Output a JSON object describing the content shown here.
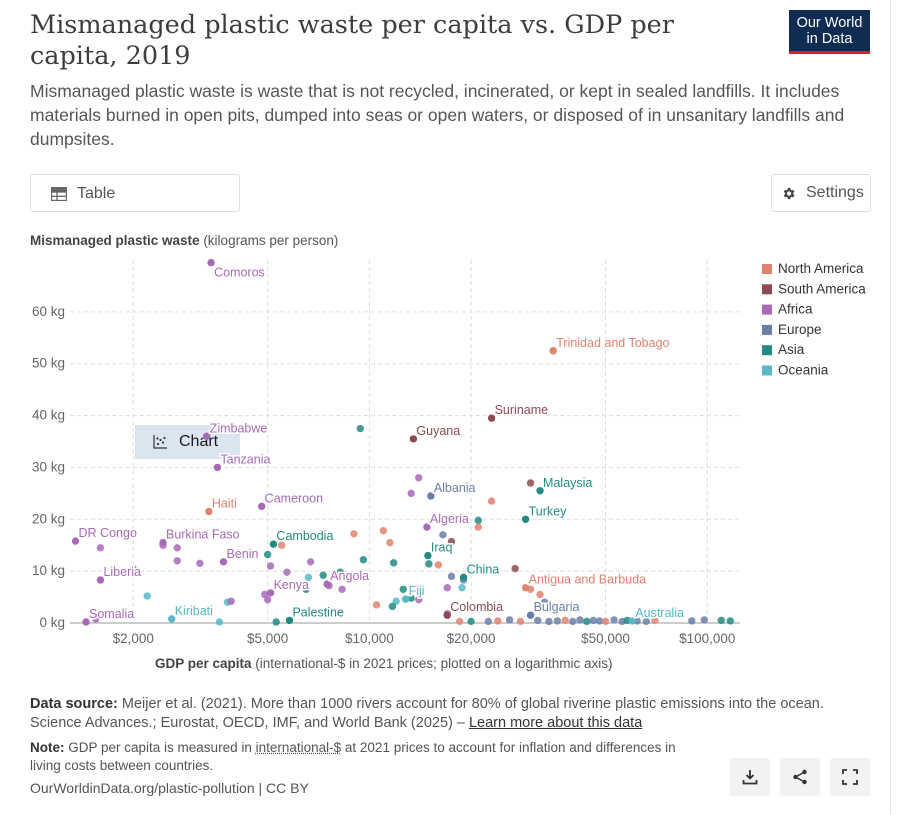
{
  "header": {
    "title": "Mismanaged plastic waste per capita vs. GDP per capita, 2019",
    "subtitle": "Mismanaged plastic waste is waste that is not recycled, incinerated, or kept in sealed landfills. It includes materials burned in open pits, dumped into seas or open waters, or disposed of in unsanitary landfills and dumpsites.",
    "logo_line1": "Our World",
    "logo_line2": "in Data"
  },
  "controls": {
    "table_label": "Table",
    "chart_label": "Chart",
    "settings_label": "Settings"
  },
  "axes": {
    "y_title_bold": "Mismanaged plastic waste",
    "y_title_rest": " (kilograms per person)",
    "x_title_bold": "GDP per capita",
    "x_title_rest": " (international-$ in 2021 prices; plotted on a logarithmic axis)"
  },
  "footer": {
    "source_label": "Data source:",
    "source_text": " Meijer et al. (2021). More than 1000 rivers account for 80% of global riverine plastic emissions into the ocean. Science Advances.; Eurostat, OECD, IMF, and World Bank (2025) – ",
    "source_link": "Learn more about this data",
    "note_label": "Note:",
    "note_text1": " GDP per capita is measured in ",
    "note_link": "international-$",
    "note_text2": " at 2021 prices to account for inflation and differences in living costs between countries.",
    "site": "OurWorldinData.org/plastic-pollution | CC BY"
  },
  "colors": {
    "North America": "#e0826e",
    "South America": "#8c4a52",
    "Africa": "#a86ab8",
    "Europe": "#6a7fa8",
    "Asia": "#218b82",
    "Oceania": "#58b8c8"
  },
  "chart_data": {
    "type": "scatter",
    "title": "Mismanaged plastic waste per capita vs. GDP per capita, 2019",
    "xlabel": "GDP per capita (international-$ in 2021 prices; plotted on a logarithmic axis)",
    "ylabel": "Mismanaged plastic waste (kilograms per person)",
    "xscale": "log",
    "xlim": [
      1300,
      125000
    ],
    "ylim": [
      0,
      70
    ],
    "xticks": [
      2000,
      5000,
      10000,
      20000,
      50000,
      100000
    ],
    "xtick_labels": [
      "$2,000",
      "$5,000",
      "$10,000",
      "$20,000",
      "$50,000",
      "$100,000"
    ],
    "yticks": [
      0,
      10,
      20,
      30,
      40,
      50,
      60
    ],
    "ytick_labels": [
      "0 kg",
      "10 kg",
      "20 kg",
      "30 kg",
      "40 kg",
      "50 kg",
      "60 kg"
    ],
    "legend": [
      "North America",
      "South America",
      "Africa",
      "Europe",
      "Asia",
      "Oceania"
    ],
    "legend_position": "top-right",
    "labeled_points": [
      {
        "name": "Comoros",
        "region": "Africa",
        "x": 3400,
        "y": 69.5
      },
      {
        "name": "Trinidad and Tobago",
        "region": "North America",
        "x": 35000,
        "y": 52.5
      },
      {
        "name": "Suriname",
        "region": "South America",
        "x": 23000,
        "y": 39.5
      },
      {
        "name": "Zimbabwe",
        "region": "Africa",
        "x": 3300,
        "y": 36
      },
      {
        "name": "Guyana",
        "region": "South America",
        "x": 13500,
        "y": 35.5
      },
      {
        "name": "Tanzania",
        "region": "Africa",
        "x": 3550,
        "y": 30
      },
      {
        "name": "Malaysia",
        "region": "Asia",
        "x": 32000,
        "y": 25.5
      },
      {
        "name": "Albania",
        "region": "Europe",
        "x": 15200,
        "y": 24.5
      },
      {
        "name": "Cameroon",
        "region": "Africa",
        "x": 4800,
        "y": 22.5
      },
      {
        "name": "Haiti",
        "region": "North America",
        "x": 3350,
        "y": 21.5
      },
      {
        "name": "Turkey",
        "region": "Asia",
        "x": 29000,
        "y": 20
      },
      {
        "name": "Algeria",
        "region": "Africa",
        "x": 14800,
        "y": 18.5
      },
      {
        "name": "DR Congo",
        "region": "Africa",
        "x": 1350,
        "y": 15.8
      },
      {
        "name": "Burkina Faso",
        "region": "Africa",
        "x": 2450,
        "y": 15.5
      },
      {
        "name": "Cambodia",
        "region": "Asia",
        "x": 5200,
        "y": 15.2
      },
      {
        "name": "Iraq",
        "region": "Asia",
        "x": 14900,
        "y": 13
      },
      {
        "name": "Benin",
        "region": "Africa",
        "x": 3700,
        "y": 11.8
      },
      {
        "name": "China",
        "region": "Asia",
        "x": 19000,
        "y": 8.8
      },
      {
        "name": "Liberia",
        "region": "Africa",
        "x": 1600,
        "y": 8.3
      },
      {
        "name": "Angola",
        "region": "Africa",
        "x": 7500,
        "y": 7.5
      },
      {
        "name": "Antigua and Barbuda",
        "region": "North America",
        "x": 29000,
        "y": 6.8
      },
      {
        "name": "Kenya",
        "region": "Africa",
        "x": 5100,
        "y": 5.8
      },
      {
        "name": "Fiji",
        "region": "Oceania",
        "x": 12800,
        "y": 4.6
      },
      {
        "name": "Colombia",
        "region": "South America",
        "x": 17000,
        "y": 1.5
      },
      {
        "name": "Bulgaria",
        "region": "Europe",
        "x": 30000,
        "y": 1.5
      },
      {
        "name": "Palestine",
        "region": "Asia",
        "x": 5800,
        "y": 0.5
      },
      {
        "name": "Kiribati",
        "region": "Oceania",
        "x": 2600,
        "y": 0.8
      },
      {
        "name": "Somalia",
        "region": "Africa",
        "x": 1450,
        "y": 0.2
      },
      {
        "name": "Australia",
        "region": "Oceania",
        "x": 60000,
        "y": 0.4
      }
    ],
    "other_points": [
      {
        "region": "Asia",
        "x": 9400,
        "y": 37.5
      },
      {
        "region": "Africa",
        "x": 14000,
        "y": 28
      },
      {
        "region": "Africa",
        "x": 13300,
        "y": 25
      },
      {
        "region": "South America",
        "x": 30000,
        "y": 27
      },
      {
        "region": "North America",
        "x": 23000,
        "y": 23.5
      },
      {
        "region": "Asia",
        "x": 21000,
        "y": 19.8
      },
      {
        "region": "North America",
        "x": 21000,
        "y": 18.5
      },
      {
        "region": "Europe",
        "x": 16500,
        "y": 17
      },
      {
        "region": "South America",
        "x": 17500,
        "y": 15.7
      },
      {
        "region": "North America",
        "x": 11000,
        "y": 17.8
      },
      {
        "region": "North America",
        "x": 9000,
        "y": 17.2
      },
      {
        "region": "North America",
        "x": 11500,
        "y": 15.5
      },
      {
        "region": "North America",
        "x": 5500,
        "y": 15
      },
      {
        "region": "Africa",
        "x": 1600,
        "y": 14.5
      },
      {
        "region": "Africa",
        "x": 2450,
        "y": 15
      },
      {
        "region": "Africa",
        "x": 2700,
        "y": 14.5
      },
      {
        "region": "Africa",
        "x": 2700,
        "y": 12
      },
      {
        "region": "Africa",
        "x": 3150,
        "y": 11.5
      },
      {
        "region": "Oceania",
        "x": 4100,
        "y": 13.5
      },
      {
        "region": "Asia",
        "x": 5000,
        "y": 13.2
      },
      {
        "region": "Asia",
        "x": 9600,
        "y": 12.2
      },
      {
        "region": "Asia",
        "x": 11800,
        "y": 11.6
      },
      {
        "region": "Asia",
        "x": 15000,
        "y": 11.4
      },
      {
        "region": "North America",
        "x": 16000,
        "y": 11.2
      },
      {
        "region": "South America",
        "x": 27000,
        "y": 10.5
      },
      {
        "region": "Africa",
        "x": 5100,
        "y": 11
      },
      {
        "region": "Africa",
        "x": 6700,
        "y": 11.8
      },
      {
        "region": "Africa",
        "x": 5700,
        "y": 9.8
      },
      {
        "region": "Africa",
        "x": 2000,
        "y": 10.5
      },
      {
        "region": "Asia",
        "x": 7300,
        "y": 9.2
      },
      {
        "region": "Oceania",
        "x": 6600,
        "y": 8.8
      },
      {
        "region": "Asia",
        "x": 8200,
        "y": 9.8
      },
      {
        "region": "Africa",
        "x": 7600,
        "y": 7.2
      },
      {
        "region": "Africa",
        "x": 8300,
        "y": 6.5
      },
      {
        "region": "Asia",
        "x": 6500,
        "y": 6.5
      },
      {
        "region": "Africa",
        "x": 4900,
        "y": 5.5
      },
      {
        "region": "Africa",
        "x": 5000,
        "y": 4.5
      },
      {
        "region": "Asia",
        "x": 12600,
        "y": 6.5
      },
      {
        "region": "Asia",
        "x": 13300,
        "y": 4.8
      },
      {
        "region": "Oceania",
        "x": 12000,
        "y": 4.2
      },
      {
        "region": "Asia",
        "x": 11700,
        "y": 3.2
      },
      {
        "region": "North America",
        "x": 10500,
        "y": 3.5
      },
      {
        "region": "Africa",
        "x": 14000,
        "y": 4.5
      },
      {
        "region": "Europe",
        "x": 17500,
        "y": 9
      },
      {
        "region": "Europe",
        "x": 19000,
        "y": 8.3
      },
      {
        "region": "Oceania",
        "x": 18800,
        "y": 6.8
      },
      {
        "region": "Africa",
        "x": 17000,
        "y": 6.8
      },
      {
        "region": "North America",
        "x": 30000,
        "y": 6.5
      },
      {
        "region": "North America",
        "x": 32000,
        "y": 5.5
      },
      {
        "region": "Europe",
        "x": 33000,
        "y": 4
      },
      {
        "region": "Oceania",
        "x": 3800,
        "y": 4
      },
      {
        "region": "Africa",
        "x": 3900,
        "y": 4.2
      },
      {
        "region": "Oceania",
        "x": 2200,
        "y": 5.2
      },
      {
        "region": "Africa",
        "x": 1550,
        "y": 0.8
      },
      {
        "region": "Asia",
        "x": 5300,
        "y": 0.2
      },
      {
        "region": "Oceania",
        "x": 3600,
        "y": 0.2
      },
      {
        "region": "Africa",
        "x": 17000,
        "y": 1.8
      },
      {
        "region": "North America",
        "x": 18500,
        "y": 0.3
      },
      {
        "region": "Asia",
        "x": 20000,
        "y": 0.3
      },
      {
        "region": "Europe",
        "x": 22500,
        "y": 0.3
      },
      {
        "region": "North America",
        "x": 24000,
        "y": 0.4
      },
      {
        "region": "Europe",
        "x": 26000,
        "y": 0.6
      },
      {
        "region": "North America",
        "x": 28000,
        "y": 0.3
      },
      {
        "region": "Europe",
        "x": 31500,
        "y": 0.5
      },
      {
        "region": "Europe",
        "x": 34000,
        "y": 0.3
      },
      {
        "region": "Europe",
        "x": 36000,
        "y": 0.4
      },
      {
        "region": "North America",
        "x": 38000,
        "y": 0.5
      },
      {
        "region": "Europe",
        "x": 40000,
        "y": 0.3
      },
      {
        "region": "Europe",
        "x": 42000,
        "y": 0.6
      },
      {
        "region": "Asia",
        "x": 44000,
        "y": 0.3
      },
      {
        "region": "Europe",
        "x": 46000,
        "y": 0.5
      },
      {
        "region": "Europe",
        "x": 48000,
        "y": 0.4
      },
      {
        "region": "North America",
        "x": 50000,
        "y": 0.3
      },
      {
        "region": "Europe",
        "x": 53000,
        "y": 0.6
      },
      {
        "region": "Europe",
        "x": 56000,
        "y": 0.3
      },
      {
        "region": "Asia",
        "x": 58000,
        "y": 0.5
      },
      {
        "region": "Europe",
        "x": 62000,
        "y": 0.4
      },
      {
        "region": "Europe",
        "x": 66000,
        "y": 0.3
      },
      {
        "region": "North America",
        "x": 70000,
        "y": 0.5
      },
      {
        "region": "Europe",
        "x": 90000,
        "y": 0.4
      },
      {
        "region": "Europe",
        "x": 98000,
        "y": 0.6
      },
      {
        "region": "Asia",
        "x": 110000,
        "y": 0.5
      },
      {
        "region": "Asia",
        "x": 117000,
        "y": 0.4
      }
    ]
  }
}
